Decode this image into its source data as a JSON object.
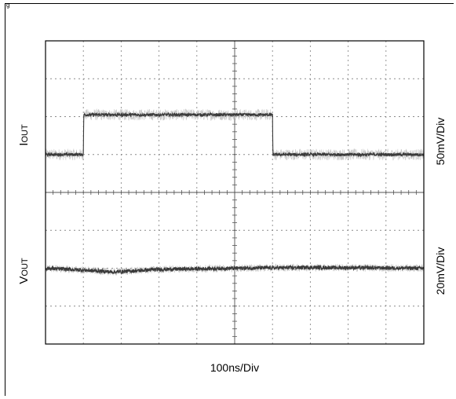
{
  "figure_label": "g",
  "chart_data": {
    "type": "line",
    "title": "",
    "xlabel": "100ns/Div",
    "grid": true,
    "x_divisions": 10,
    "y_divisions": 8,
    "series": [
      {
        "name": "IOUT",
        "label_main": "I",
        "label_sub": "OUT",
        "scale_label": "50mV/Div",
        "unit": "div",
        "x": [
          0,
          1.0,
          1.01,
          6.0,
          6.01,
          10
        ],
        "y": [
          5.0,
          5.0,
          6.05,
          6.05,
          5.0,
          5.0
        ],
        "noise_div": 0.15,
        "core_noise_div": 0.04
      },
      {
        "name": "VOUT",
        "label_main": "V",
        "label_sub": "OUT",
        "scale_label": "20mV/Div",
        "unit": "div",
        "x": [
          0,
          1.0,
          1.8,
          3.0,
          5.0,
          7.0,
          10
        ],
        "y": [
          2.0,
          1.95,
          1.9,
          1.97,
          2.0,
          2.02,
          2.0
        ],
        "noise_div": 0.1,
        "core_noise_div": 0.05
      }
    ]
  }
}
